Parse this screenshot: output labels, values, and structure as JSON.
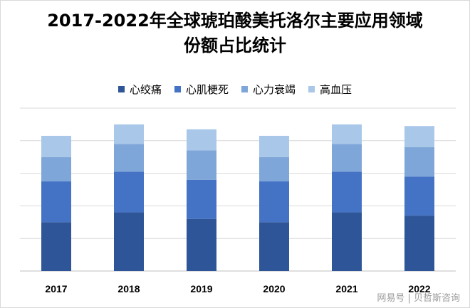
{
  "chart_data": {
    "type": "bar",
    "stacked": true,
    "title_line1": "2017-2022年全球琥珀酸美托洛尔主要应用领域",
    "title_line2": "份额占比统计",
    "categories": [
      "2017",
      "2018",
      "2019",
      "2020",
      "2021",
      "2022"
    ],
    "series": [
      {
        "name": "心绞痛",
        "color": "#2e5597",
        "values": [
          30,
          36,
          32,
          30,
          36,
          34
        ]
      },
      {
        "name": "心肌梗死",
        "color": "#4472c4",
        "values": [
          25,
          25,
          24,
          25,
          25,
          24
        ]
      },
      {
        "name": "心力衰竭",
        "color": "#7fa6d8",
        "values": [
          15,
          17,
          18,
          15,
          17,
          18
        ]
      },
      {
        "name": "高血压",
        "color": "#a9c7e8",
        "values": [
          13,
          12,
          13,
          13,
          12,
          13
        ]
      }
    ],
    "ylim": [
      0,
      100
    ],
    "grid": true,
    "legend_position": "top"
  },
  "watermark": "网易号 | 贝哲斯咨询"
}
